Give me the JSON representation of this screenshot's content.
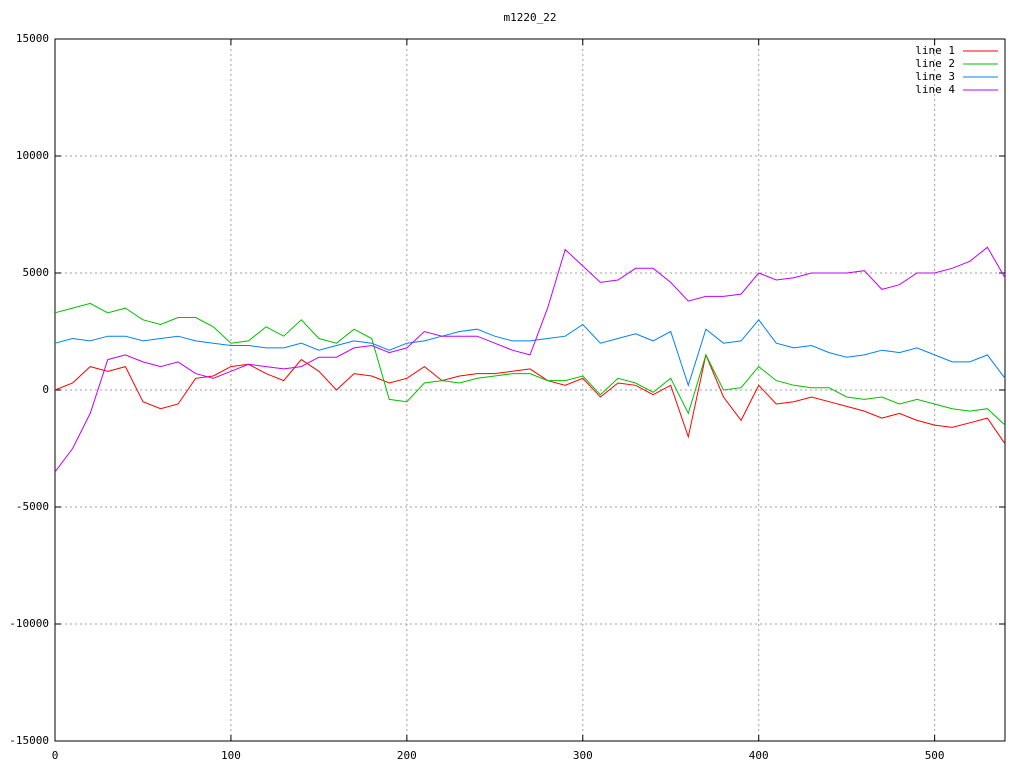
{
  "chart_data": {
    "type": "line",
    "title": "m1220_22",
    "x": [
      0,
      10,
      20,
      30,
      40,
      50,
      60,
      70,
      80,
      90,
      100,
      110,
      120,
      130,
      140,
      150,
      160,
      170,
      180,
      190,
      200,
      210,
      220,
      230,
      240,
      250,
      260,
      270,
      280,
      290,
      300,
      310,
      320,
      330,
      340,
      350,
      360,
      370,
      380,
      390,
      400,
      410,
      420,
      430,
      440,
      450,
      460,
      470,
      480,
      490,
      500,
      510,
      520,
      530,
      540
    ],
    "xlim": [
      0,
      540
    ],
    "xticks": [
      0,
      100,
      200,
      300,
      400,
      500
    ],
    "ylim": [
      -15000,
      15000
    ],
    "yticks": [
      -15000,
      -10000,
      -5000,
      0,
      5000,
      10000,
      15000
    ],
    "grid": true,
    "legend": "top-right",
    "series": [
      {
        "name": "line 1",
        "color": "#ff0000",
        "values": [
          0,
          300,
          1000,
          800,
          1000,
          -500,
          -800,
          -600,
          500,
          600,
          1000,
          1100,
          700,
          400,
          1300,
          800,
          0,
          700,
          600,
          300,
          500,
          1000,
          400,
          600,
          700,
          700,
          800,
          900,
          400,
          200,
          500,
          -300,
          300,
          200,
          -200,
          200,
          -2000,
          1500,
          -300,
          -1300,
          200,
          -600,
          -500,
          -300,
          -500,
          -700,
          -900,
          -1200,
          -1000,
          -1300,
          -1500,
          -1600,
          -1400,
          -1200,
          -2300
        ]
      },
      {
        "name": "line 2",
        "color": "#00c000",
        "values": [
          3300,
          3500,
          3700,
          3300,
          3500,
          3000,
          2800,
          3100,
          3100,
          2700,
          2000,
          2100,
          2700,
          2300,
          3000,
          2200,
          2000,
          2600,
          2200,
          -400,
          -500,
          300,
          400,
          300,
          500,
          600,
          700,
          700,
          400,
          400,
          600,
          -200,
          500,
          300,
          -100,
          500,
          -1000,
          1500,
          0,
          100,
          1000,
          400,
          200,
          100,
          100,
          -300,
          -400,
          -300,
          -600,
          -400,
          -600,
          -800,
          -900,
          -800,
          -1500
        ]
      },
      {
        "name": "line 3",
        "color": "#0080ff",
        "values": [
          2000,
          2200,
          2100,
          2300,
          2300,
          2100,
          2200,
          2300,
          2100,
          2000,
          1900,
          1900,
          1800,
          1800,
          2000,
          1700,
          1900,
          2100,
          2000,
          1700,
          2000,
          2100,
          2300,
          2500,
          2600,
          2300,
          2100,
          2100,
          2200,
          2300,
          2800,
          2000,
          2200,
          2400,
          2100,
          2500,
          200,
          2600,
          2000,
          2100,
          3000,
          2000,
          1800,
          1900,
          1600,
          1400,
          1500,
          1700,
          1600,
          1800,
          1500,
          1200,
          1200,
          1500,
          500
        ]
      },
      {
        "name": "line 4",
        "color": "#c000ff",
        "values": [
          -3500,
          -2500,
          -1000,
          1300,
          1500,
          1200,
          1000,
          1200,
          700,
          500,
          800,
          1100,
          1000,
          900,
          1000,
          1400,
          1400,
          1800,
          1900,
          1600,
          1800,
          2500,
          2300,
          2300,
          2300,
          2000,
          1700,
          1500,
          3500,
          6000,
          5300,
          4600,
          4700,
          5200,
          5200,
          4600,
          3800,
          4000,
          4000,
          4100,
          5000,
          4700,
          4800,
          5000,
          5000,
          5000,
          5100,
          4300,
          4500,
          5000,
          5000,
          5200,
          5500,
          6100,
          4800
        ]
      }
    ]
  }
}
